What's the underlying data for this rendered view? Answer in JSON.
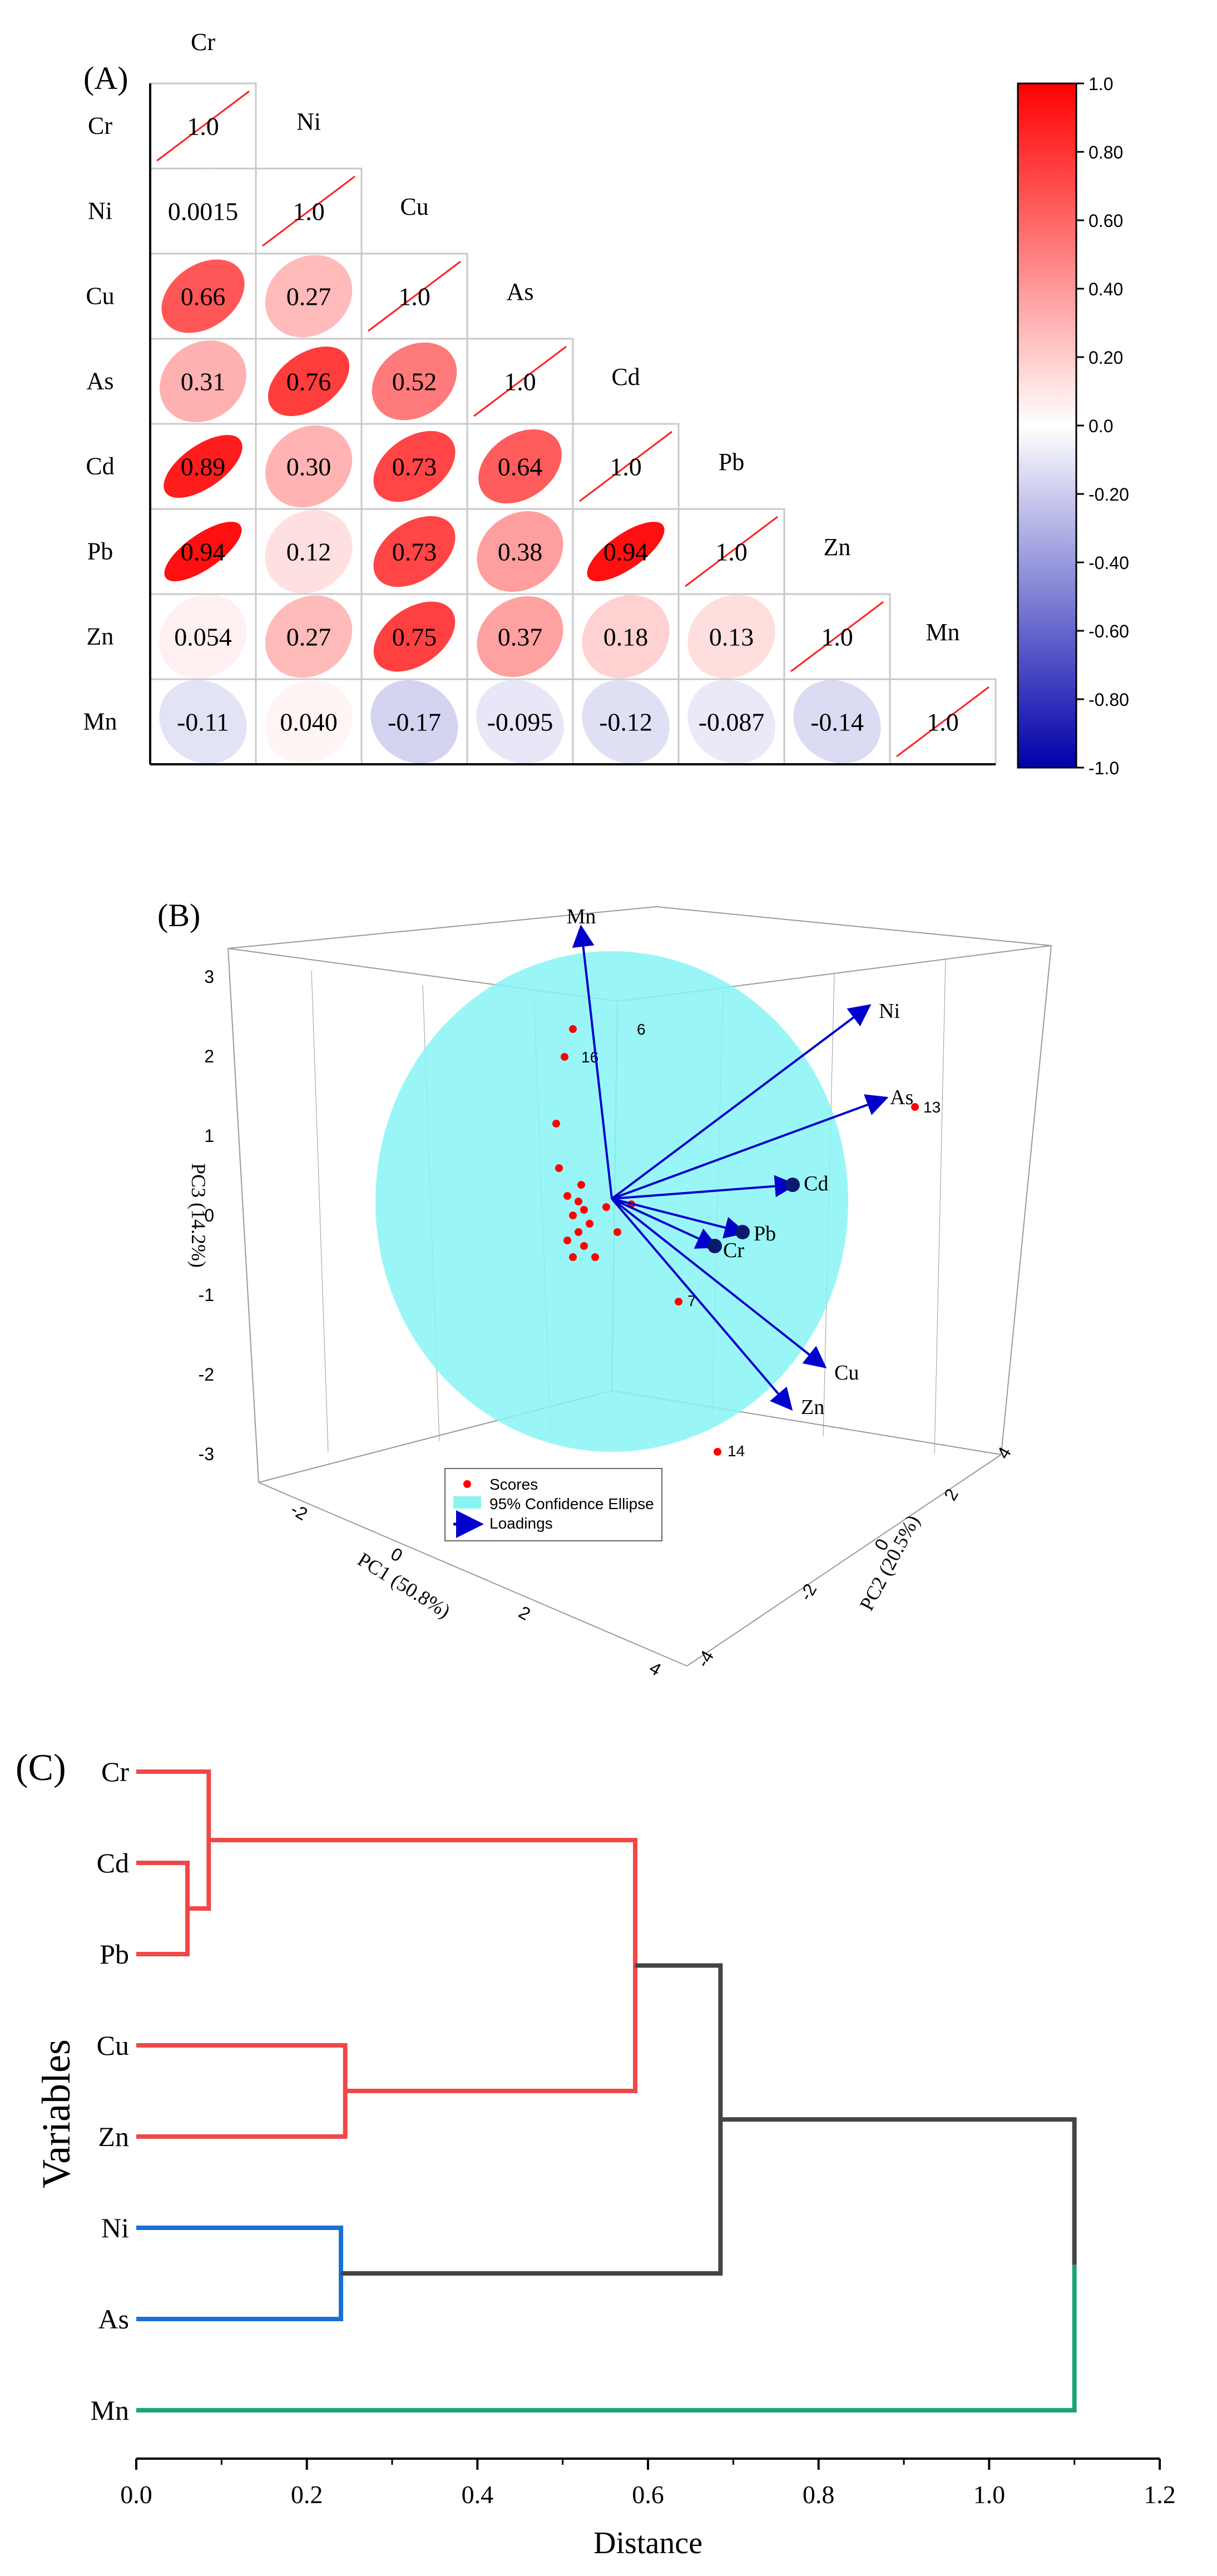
{
  "colors": {
    "positive": "#ff0000",
    "negative": "#0000aa",
    "neutral": "#ffffff",
    "red_cluster": "#f04848",
    "blue_cluster": "#1a6fd6",
    "green_cluster": "#1aa37a",
    "link_gray": "#444444",
    "ellipse_fill": "#88f4f4",
    "loading": "#0000cc",
    "score": "#ff0000"
  },
  "chart_data": [
    {
      "panel": "(A)",
      "type": "heatmap",
      "variables": [
        "Cr",
        "Ni",
        "Cu",
        "As",
        "Cd",
        "Pb",
        "Zn",
        "Mn"
      ],
      "matrix": [
        [
          "1.0"
        ],
        [
          "0.0015",
          "1.0"
        ],
        [
          "0.66",
          "0.27",
          "1.0"
        ],
        [
          "0.31",
          "0.76",
          "0.52",
          "1.0"
        ],
        [
          "0.89",
          "0.30",
          "0.73",
          "0.64",
          "1.0"
        ],
        [
          "0.94",
          "0.12",
          "0.73",
          "0.38",
          "0.94",
          "1.0"
        ],
        [
          "0.054",
          "0.27",
          "0.75",
          "0.37",
          "0.18",
          "0.13",
          "1.0"
        ],
        [
          "-0.11",
          "0.040",
          "-0.17",
          "-0.095",
          "-0.12",
          "-0.087",
          "-0.14",
          "1.0"
        ]
      ],
      "colorbar": {
        "range": [
          -1,
          1
        ],
        "ticks": [
          "1.0",
          "0.80",
          "0.60",
          "0.40",
          "0.20",
          "0.0",
          "-0.20",
          "-0.40",
          "-0.60",
          "-0.80",
          "-1.0"
        ]
      }
    },
    {
      "panel": "(B)",
      "type": "scatter",
      "title": "",
      "axes": {
        "x_label": "PC1 (50.8%)",
        "y_label": "PC2 (20.5%)",
        "z_label": "PC3 (14.2%)",
        "z_ticks": [
          "3",
          "2",
          "1",
          "0",
          "-1",
          "-2",
          "-3"
        ],
        "x_ticks": [
          "-2",
          "0",
          "2",
          "4"
        ],
        "y_ticks": [
          "4",
          "2",
          "0",
          "-2",
          "-4"
        ]
      },
      "loadings": [
        {
          "name": "Mn"
        },
        {
          "name": "Ni"
        },
        {
          "name": "As"
        },
        {
          "name": "Cd"
        },
        {
          "name": "Pb"
        },
        {
          "name": "Cr"
        },
        {
          "name": "Cu"
        },
        {
          "name": "Zn"
        }
      ],
      "labeled_scores": [
        "6",
        "16",
        "13",
        "7",
        "14"
      ],
      "legend": [
        "Scores",
        "95% Confidence Ellipse",
        "Loadings"
      ]
    },
    {
      "panel": "(C)",
      "type": "dendrogram",
      "xlabel": "Distance",
      "ylabel": "Variables",
      "xlim": [
        0,
        1.2
      ],
      "x_ticks": [
        "0.0",
        "0.2",
        "0.4",
        "0.6",
        "0.8",
        "1.0",
        "1.2"
      ],
      "leaves": [
        "Cr",
        "Cd",
        "Pb",
        "Cu",
        "Zn",
        "Ni",
        "As",
        "Mn"
      ],
      "merges": [
        {
          "left": "Cd",
          "right": "Pb",
          "distance": 0.06,
          "cluster": "red"
        },
        {
          "left": "Cr",
          "right": "Cd+Pb",
          "distance": 0.085,
          "cluster": "red"
        },
        {
          "left": "Cu",
          "right": "Zn",
          "distance": 0.245,
          "cluster": "red"
        },
        {
          "left": "Ni",
          "right": "As",
          "distance": 0.24,
          "cluster": "blue"
        },
        {
          "left": "Cr+Cd+Pb",
          "right": "Cu+Zn",
          "distance": 0.585,
          "cluster": "red"
        },
        {
          "left": "red",
          "right": "Ni+As",
          "distance": 0.685,
          "cluster": "gray"
        },
        {
          "left": "all",
          "right": "Mn",
          "distance": 1.1,
          "cluster": "gray"
        }
      ]
    }
  ]
}
